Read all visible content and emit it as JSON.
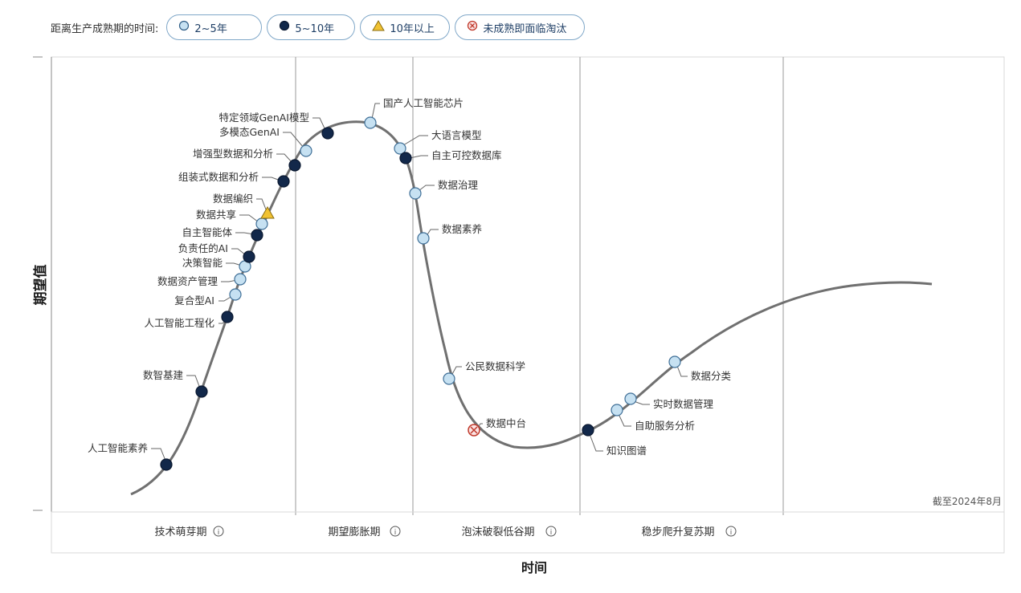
{
  "legend": {
    "label": "距离生产成熟期的时间:",
    "items": [
      {
        "key": "a",
        "label": "2~5年",
        "symbol": "circle",
        "color": "#c6e1f2"
      },
      {
        "key": "b",
        "label": "5~10年",
        "symbol": "circle",
        "color": "#12284a"
      },
      {
        "key": "c",
        "label": "10年以上",
        "symbol": "triangle",
        "color": "#f1c232"
      },
      {
        "key": "d",
        "label": "未成熟即面临淘汰",
        "symbol": "crossed-circle",
        "color": "#c0392b"
      }
    ]
  },
  "chart_data": {
    "type": "scatter",
    "ylabel": "期望值",
    "xlabel": "时间",
    "note": "截至2024年8月",
    "phases": [
      "技术萌芽期",
      "期望膨胀期",
      "泡沫破裂低谷期",
      "稳步爬升复苏期"
    ],
    "info_icon": "info-icon",
    "grid": true,
    "points": [
      {
        "name": "人工智能素养",
        "horizon": "b"
      },
      {
        "name": "数智基建",
        "horizon": "b"
      },
      {
        "name": "人工智能工程化",
        "horizon": "b"
      },
      {
        "name": "复合型AI",
        "horizon": "a"
      },
      {
        "name": "数据资产管理",
        "horizon": "a"
      },
      {
        "name": "决策智能",
        "horizon": "a"
      },
      {
        "name": "负责任的AI",
        "horizon": "b"
      },
      {
        "name": "自主智能体",
        "horizon": "b"
      },
      {
        "name": "数据共享",
        "horizon": "a"
      },
      {
        "name": "数据编织",
        "horizon": "c"
      },
      {
        "name": "组装式数据和分析",
        "horizon": "b"
      },
      {
        "name": "增强型数据和分析",
        "horizon": "b"
      },
      {
        "name": "多模态GenAI",
        "horizon": "a"
      },
      {
        "name": "特定领域GenAI模型",
        "horizon": "b"
      },
      {
        "name": "国产人工智能芯片",
        "horizon": "a"
      },
      {
        "name": "大语言模型",
        "horizon": "a"
      },
      {
        "name": "自主可控数据库",
        "horizon": "b"
      },
      {
        "name": "数据治理",
        "horizon": "a"
      },
      {
        "name": "数据素养",
        "horizon": "a"
      },
      {
        "name": "公民数据科学",
        "horizon": "a"
      },
      {
        "name": "数据中台",
        "horizon": "d"
      },
      {
        "name": "知识图谱",
        "horizon": "b"
      },
      {
        "name": "自助服务分析",
        "horizon": "a"
      },
      {
        "name": "实时数据管理",
        "horizon": "a"
      },
      {
        "name": "数据分类",
        "horizon": "a"
      }
    ]
  }
}
